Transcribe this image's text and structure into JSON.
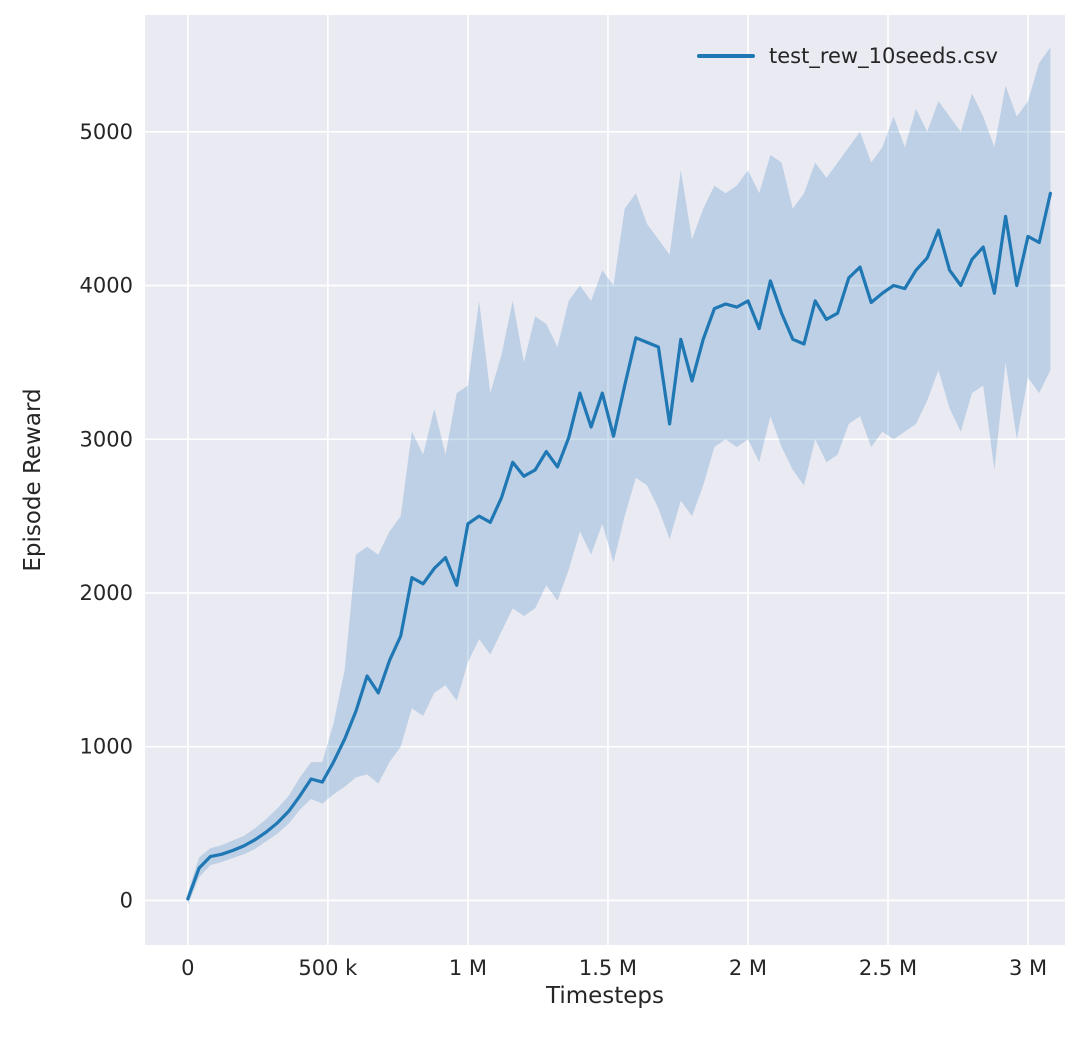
{
  "figure": {
    "background": "#ffffff",
    "axes_background": "#eaeaf2",
    "grid_color": "#ffffff",
    "text_color": "#262626"
  },
  "legend": {
    "label": "test_rew_10seeds.csv",
    "line_color": "#1f77b4"
  },
  "chart_data": {
    "type": "line",
    "title": "",
    "xlabel": "Timesteps",
    "ylabel": "Episode Reward",
    "grid": true,
    "legend_position": "upper right",
    "xlim": [
      -153000,
      3132000
    ],
    "ylim": [
      -290,
      5760
    ],
    "xticks": {
      "values": [
        0,
        500000,
        1000000,
        1500000,
        2000000,
        2500000,
        3000000
      ],
      "labels": [
        "0",
        "500 k",
        "1 M",
        "1.5 M",
        "2 M",
        "2.5 M",
        "3 M"
      ]
    },
    "yticks": {
      "values": [
        0,
        1000,
        2000,
        3000,
        4000,
        5000
      ],
      "labels": [
        "0",
        "1000",
        "2000",
        "3000",
        "4000",
        "5000"
      ]
    },
    "series": [
      {
        "name": "test_rew_10seeds.csv",
        "color": "#1f77b4",
        "band_opacity": 0.22,
        "x": [
          0,
          40000,
          80000,
          120000,
          160000,
          200000,
          240000,
          280000,
          320000,
          360000,
          400000,
          440000,
          480000,
          520000,
          560000,
          600000,
          640000,
          680000,
          720000,
          760000,
          800000,
          840000,
          880000,
          920000,
          960000,
          1000000,
          1040000,
          1080000,
          1120000,
          1160000,
          1200000,
          1240000,
          1280000,
          1320000,
          1360000,
          1400000,
          1440000,
          1480000,
          1520000,
          1560000,
          1600000,
          1640000,
          1680000,
          1720000,
          1760000,
          1800000,
          1840000,
          1880000,
          1920000,
          1960000,
          2000000,
          2040000,
          2080000,
          2120000,
          2160000,
          2200000,
          2240000,
          2280000,
          2320000,
          2360000,
          2400000,
          2440000,
          2480000,
          2520000,
          2560000,
          2600000,
          2640000,
          2680000,
          2720000,
          2760000,
          2800000,
          2840000,
          2880000,
          2920000,
          2960000,
          3000000,
          3040000,
          3080000
        ],
        "mean": [
          10,
          210,
          285,
          300,
          325,
          355,
          395,
          445,
          505,
          580,
          680,
          790,
          770,
          900,
          1050,
          1230,
          1460,
          1350,
          1560,
          1720,
          2100,
          2060,
          2160,
          2230,
          2050,
          2450,
          2500,
          2460,
          2620,
          2850,
          2760,
          2800,
          2920,
          2820,
          3010,
          3300,
          3080,
          3300,
          3020,
          3350,
          3660,
          3630,
          3600,
          3100,
          3650,
          3380,
          3650,
          3850,
          3880,
          3860,
          3900,
          3720,
          4030,
          3820,
          3650,
          3620,
          3900,
          3780,
          3820,
          4050,
          4120,
          3890,
          3950,
          4000,
          3980,
          4100,
          4180,
          4360,
          4100,
          4000,
          4170,
          4250,
          3950,
          4450,
          4000,
          4320,
          4280,
          4600
        ],
        "band_lower": [
          -30,
          150,
          230,
          250,
          275,
          300,
          335,
          385,
          435,
          500,
          590,
          660,
          630,
          690,
          740,
          800,
          820,
          760,
          900,
          1000,
          1250,
          1200,
          1350,
          1400,
          1300,
          1550,
          1700,
          1600,
          1750,
          1900,
          1850,
          1900,
          2050,
          1950,
          2150,
          2400,
          2250,
          2450,
          2200,
          2500,
          2750,
          2700,
          2550,
          2350,
          2600,
          2500,
          2700,
          2950,
          3000,
          2950,
          3000,
          2850,
          3150,
          2950,
          2800,
          2700,
          3000,
          2850,
          2900,
          3100,
          3150,
          2950,
          3050,
          3000,
          3050,
          3100,
          3250,
          3450,
          3200,
          3050,
          3300,
          3350,
          2800,
          3500,
          3000,
          3400,
          3300,
          3450
        ],
        "band_upper": [
          50,
          280,
          340,
          360,
          390,
          420,
          470,
          530,
          600,
          680,
          800,
          900,
          900,
          1150,
          1500,
          2250,
          2300,
          2250,
          2400,
          2500,
          3050,
          2900,
          3200,
          2900,
          3300,
          3350,
          3900,
          3300,
          3550,
          3900,
          3500,
          3800,
          3750,
          3600,
          3900,
          4000,
          3900,
          4100,
          4000,
          4500,
          4600,
          4400,
          4300,
          4200,
          4750,
          4300,
          4500,
          4650,
          4600,
          4650,
          4750,
          4600,
          4850,
          4800,
          4500,
          4600,
          4800,
          4700,
          4800,
          4900,
          5000,
          4800,
          4900,
          5100,
          4900,
          5150,
          5000,
          5200,
          5100,
          5000,
          5250,
          5100,
          4900,
          5300,
          5100,
          5200,
          5450,
          5550
        ]
      }
    ]
  }
}
